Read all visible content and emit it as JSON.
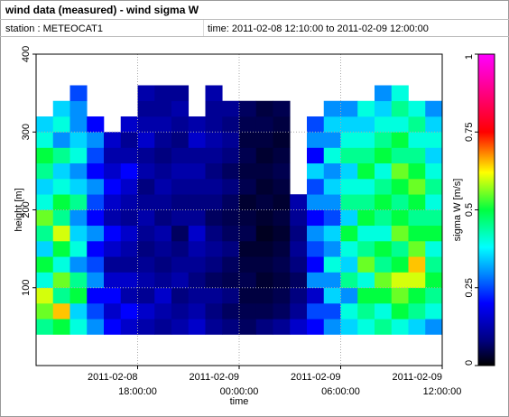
{
  "header": {
    "title": "wind data (measured) - wind sigma W",
    "station": "station : METEOCAT1",
    "time": "time: 2011-02-08 12:10:00 to 2011-02-09 12:00:00"
  },
  "chart_data": {
    "type": "heatmap",
    "x_label": "time",
    "y_label": "height [m]",
    "colorbar_label": "sigma W [m/s]",
    "xlim": [
      12,
      36
    ],
    "xticks": [
      {
        "value": 18,
        "label": [
          "2011-02-08",
          "18:00:00"
        ]
      },
      {
        "value": 24,
        "label": [
          "2011-02-09",
          "00:00:00"
        ]
      },
      {
        "value": 30,
        "label": [
          "2011-02-09",
          "06:00:00"
        ]
      },
      {
        "value": 36,
        "label": [
          "2011-02-09",
          "12:00:00"
        ]
      }
    ],
    "ylim": [
      0,
      400
    ],
    "yticks": [
      100,
      200,
      300,
      400
    ],
    "zlim": [
      0,
      1
    ],
    "zticks": [
      0,
      0.25,
      0.5,
      0.75,
      1
    ],
    "grid": true,
    "colorscale": [
      [
        0,
        "#000000"
      ],
      [
        0.08,
        "#00007f"
      ],
      [
        0.2,
        "#0000ff"
      ],
      [
        0.3,
        "#0090ff"
      ],
      [
        0.38,
        "#00ffff"
      ],
      [
        0.5,
        "#00ff40"
      ],
      [
        0.62,
        "#ffff00"
      ],
      [
        0.75,
        "#ff0000"
      ],
      [
        1,
        "#ff00ff"
      ]
    ],
    "x": [
      12,
      13,
      14,
      15,
      16,
      17,
      18,
      19,
      20,
      21,
      22,
      23,
      24,
      25,
      26,
      27,
      28,
      29,
      30,
      31,
      32,
      33,
      34,
      35
    ],
    "y": [
      40,
      60,
      80,
      100,
      120,
      140,
      160,
      180,
      200,
      220,
      240,
      260,
      280,
      300,
      320,
      340
    ],
    "z": [
      [
        0.45,
        0.55,
        0.6,
        0.4,
        0.5,
        0.35,
        0.45,
        0.55,
        0.4,
        0.35,
        0.45,
        0.5,
        0.4,
        0.35,
        null,
        null
      ],
      [
        0.5,
        0.65,
        0.45,
        0.55,
        0.4,
        0.5,
        0.6,
        0.45,
        0.5,
        0.4,
        0.35,
        0.45,
        0.3,
        0.4,
        0.35,
        null
      ],
      [
        0.4,
        0.35,
        0.5,
        0.45,
        0.3,
        0.4,
        0.35,
        0.3,
        0.45,
        0.35,
        0.3,
        0.4,
        0.35,
        0.3,
        0.3,
        0.25
      ],
      [
        0.3,
        0.25,
        0.2,
        0.3,
        0.25,
        0.2,
        0.3,
        0.2,
        0.25,
        0.3,
        0.2,
        0.25,
        0.3,
        0.2,
        null,
        null
      ],
      [
        0.2,
        0.15,
        0.2,
        0.15,
        0.1,
        0.15,
        0.2,
        0.12,
        0.15,
        0.2,
        0.15,
        0.12,
        0.15,
        null,
        null,
        null
      ],
      [
        0.15,
        0.2,
        0.12,
        0.15,
        0.1,
        0.12,
        0.15,
        0.1,
        0.12,
        0.15,
        0.2,
        0.12,
        0.1,
        0.15,
        null,
        null
      ],
      [
        0.12,
        0.15,
        0.1,
        0.12,
        0.1,
        0.08,
        0.1,
        0.12,
        0.1,
        0.08,
        0.12,
        0.1,
        0.15,
        0.12,
        0.1,
        0.12
      ],
      [
        0.1,
        0.12,
        0.15,
        0.1,
        0.08,
        0.1,
        0.12,
        0.08,
        0.1,
        0.12,
        0.1,
        0.08,
        0.1,
        0.12,
        0.1,
        0.1
      ],
      [
        0.12,
        0.1,
        0.08,
        0.12,
        0.1,
        0.08,
        0.06,
        0.1,
        0.08,
        0.1,
        0.12,
        0.1,
        0.08,
        0.1,
        0.12,
        0.1
      ],
      [
        0.15,
        0.12,
        0.1,
        0.08,
        0.1,
        0.12,
        0.15,
        0.1,
        0.08,
        0.1,
        0.12,
        0.1,
        0.15,
        0.12,
        null,
        null
      ],
      [
        0.1,
        0.08,
        0.1,
        0.06,
        0.08,
        0.1,
        0.08,
        0.06,
        0.08,
        0.1,
        0.08,
        0.1,
        0.12,
        0.1,
        0.1,
        0.12
      ],
      [
        0.08,
        0.06,
        0.08,
        0.05,
        0.06,
        0.08,
        0.06,
        0.05,
        0.06,
        0.08,
        0.06,
        0.08,
        0.1,
        0.08,
        0.1,
        null
      ],
      [
        0.06,
        0.05,
        0.04,
        0.05,
        0.04,
        0.03,
        0.05,
        0.04,
        0.03,
        0.05,
        0.04,
        0.05,
        0.04,
        0.05,
        0.06,
        null
      ],
      [
        0.08,
        0.05,
        0.04,
        0.03,
        0.04,
        0.03,
        0.02,
        0.03,
        0.04,
        0.03,
        0.04,
        0.03,
        0.04,
        0.05,
        0.04,
        null
      ],
      [
        0.1,
        0.06,
        0.05,
        0.04,
        0.05,
        0.04,
        0.03,
        0.04,
        0.03,
        0.04,
        0.05,
        0.04,
        0.03,
        0.04,
        0.05,
        null
      ],
      [
        0.15,
        0.1,
        0.08,
        0.06,
        0.08,
        0.1,
        0.08,
        0.1,
        0.12,
        null,
        null,
        null,
        null,
        null,
        null,
        null
      ],
      [
        0.2,
        0.25,
        0.15,
        0.3,
        0.2,
        0.25,
        0.3,
        0.2,
        0.3,
        0.25,
        0.35,
        0.2,
        0.3,
        0.25,
        null,
        null
      ],
      [
        0.3,
        0.25,
        0.35,
        0.3,
        0.4,
        0.3,
        0.35,
        0.25,
        0.3,
        0.35,
        0.3,
        0.4,
        0.3,
        0.35,
        0.3,
        null
      ],
      [
        0.35,
        0.4,
        0.3,
        0.45,
        0.35,
        0.4,
        0.5,
        0.35,
        0.45,
        0.4,
        0.35,
        0.45,
        0.4,
        0.35,
        0.3,
        null
      ],
      [
        0.4,
        0.45,
        0.5,
        0.4,
        0.55,
        0.45,
        0.4,
        0.5,
        0.45,
        0.4,
        0.5,
        0.45,
        0.4,
        0.35,
        0.4,
        null
      ],
      [
        0.45,
        0.4,
        0.5,
        0.55,
        0.45,
        0.5,
        0.4,
        0.45,
        0.5,
        0.45,
        0.4,
        0.5,
        0.45,
        0.4,
        0.35,
        0.3
      ],
      [
        0.4,
        0.5,
        0.55,
        0.6,
        0.5,
        0.45,
        0.55,
        0.5,
        0.45,
        0.5,
        0.55,
        0.45,
        0.5,
        0.4,
        0.45,
        0.4
      ],
      [
        0.35,
        0.45,
        0.5,
        0.6,
        0.65,
        0.55,
        0.5,
        0.45,
        0.5,
        0.55,
        0.5,
        0.45,
        0.4,
        0.45,
        0.4,
        null
      ],
      [
        0.3,
        0.4,
        0.45,
        0.5,
        0.45,
        0.4,
        0.5,
        0.45,
        0.4,
        0.45,
        0.4,
        0.35,
        0.4,
        0.35,
        0.3,
        null
      ]
    ]
  }
}
